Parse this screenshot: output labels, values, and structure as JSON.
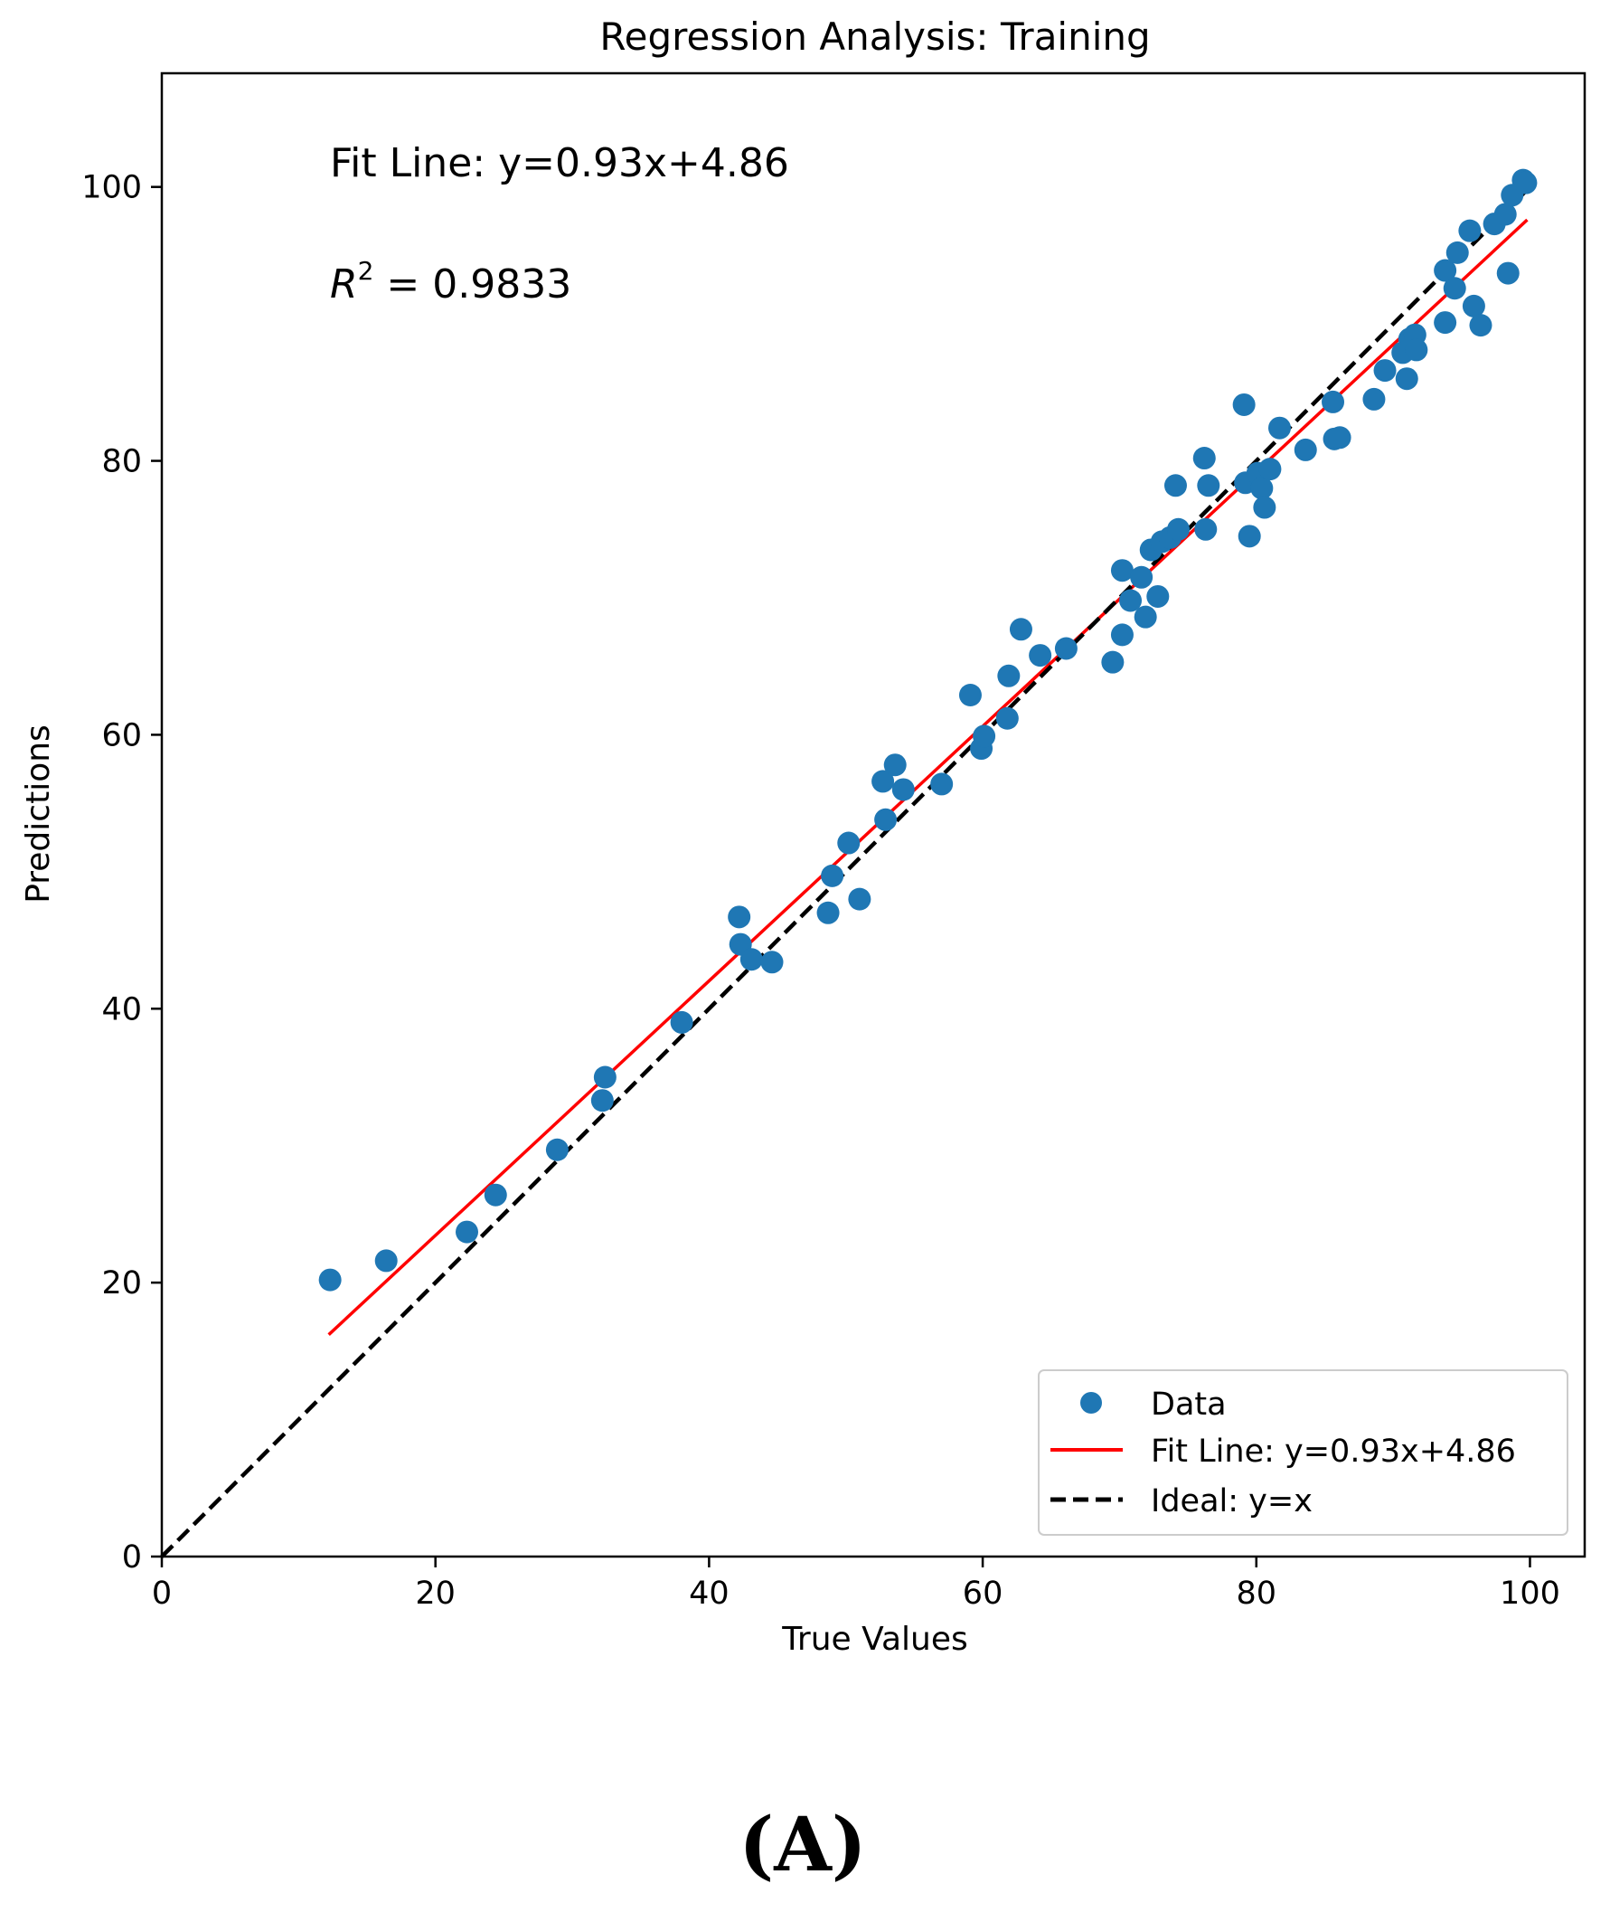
{
  "chart_data": {
    "type": "scatter",
    "title": "Regression Analysis: Training",
    "xlabel": "True Values",
    "ylabel": "Predictions",
    "xlim": [
      0,
      104
    ],
    "ylim": [
      0,
      108.3
    ],
    "xticks": [
      0,
      20,
      40,
      60,
      80,
      100
    ],
    "yticks": [
      0,
      20,
      40,
      60,
      80,
      100
    ],
    "grid": false,
    "legend_position": "lower-right",
    "annotations": {
      "fit_text": "Fit Line: y=0.93x+4.86",
      "r2_symbol": "R",
      "r2_exponent": "2",
      "r2_value": " = 0.9833"
    },
    "panel_label": "(A)",
    "series": [
      {
        "name": "Data",
        "kind": "points",
        "color": "#1f77b4",
        "points": [
          [
            12.3,
            20.2
          ],
          [
            16.4,
            21.6
          ],
          [
            22.3,
            23.7
          ],
          [
            24.4,
            26.4
          ],
          [
            28.9,
            29.7
          ],
          [
            32.2,
            33.3
          ],
          [
            32.4,
            35.0
          ],
          [
            38.0,
            39.0
          ],
          [
            42.2,
            46.7
          ],
          [
            42.3,
            44.7
          ],
          [
            43.1,
            43.6
          ],
          [
            44.6,
            43.4
          ],
          [
            48.7,
            47.0
          ],
          [
            49.0,
            49.7
          ],
          [
            50.2,
            52.1
          ],
          [
            51.0,
            48.0
          ],
          [
            52.7,
            56.6
          ],
          [
            52.9,
            53.8
          ],
          [
            53.6,
            57.8
          ],
          [
            54.2,
            56.0
          ],
          [
            57.0,
            56.4
          ],
          [
            59.1,
            62.9
          ],
          [
            59.9,
            59.0
          ],
          [
            60.1,
            59.9
          ],
          [
            61.8,
            61.2
          ],
          [
            61.9,
            64.3
          ],
          [
            62.8,
            67.7
          ],
          [
            64.2,
            65.8
          ],
          [
            66.1,
            66.3
          ],
          [
            69.5,
            65.3
          ],
          [
            70.2,
            72.0
          ],
          [
            70.2,
            67.3
          ],
          [
            70.8,
            69.8
          ],
          [
            71.6,
            71.5
          ],
          [
            71.9,
            68.6
          ],
          [
            72.3,
            73.5
          ],
          [
            72.8,
            70.1
          ],
          [
            73.1,
            74.1
          ],
          [
            73.7,
            74.4
          ],
          [
            74.1,
            78.2
          ],
          [
            74.3,
            75.0
          ],
          [
            76.2,
            80.2
          ],
          [
            76.3,
            75.0
          ],
          [
            76.5,
            78.2
          ],
          [
            79.1,
            84.1
          ],
          [
            79.2,
            78.4
          ],
          [
            79.5,
            74.5
          ],
          [
            80.1,
            79.1
          ],
          [
            80.4,
            78.0
          ],
          [
            80.6,
            76.6
          ],
          [
            81.0,
            79.4
          ],
          [
            81.7,
            82.4
          ],
          [
            83.6,
            80.8
          ],
          [
            85.6,
            84.3
          ],
          [
            85.7,
            81.6
          ],
          [
            86.1,
            81.7
          ],
          [
            88.6,
            84.5
          ],
          [
            89.4,
            86.6
          ],
          [
            90.7,
            87.9
          ],
          [
            91.0,
            86.0
          ],
          [
            91.2,
            88.9
          ],
          [
            91.6,
            89.2
          ],
          [
            91.7,
            88.1
          ],
          [
            93.8,
            90.1
          ],
          [
            93.8,
            93.9
          ],
          [
            94.5,
            92.6
          ],
          [
            94.7,
            95.2
          ],
          [
            95.6,
            96.8
          ],
          [
            95.9,
            91.3
          ],
          [
            96.4,
            89.9
          ],
          [
            97.4,
            97.3
          ],
          [
            98.2,
            98.0
          ],
          [
            98.4,
            93.7
          ],
          [
            98.7,
            99.4
          ],
          [
            99.5,
            100.5
          ],
          [
            99.7,
            100.3
          ]
        ]
      },
      {
        "name": "Fit Line: y=0.93x+4.86",
        "kind": "line",
        "color": "#ff0000",
        "dash": "solid",
        "points": [
          [
            12.2,
            16.2
          ],
          [
            99.8,
            97.6
          ]
        ]
      },
      {
        "name": "Ideal: y=x",
        "kind": "line",
        "color": "#000000",
        "dash": "dashed",
        "points": [
          [
            0,
            0
          ],
          [
            100,
            100
          ]
        ]
      }
    ]
  }
}
